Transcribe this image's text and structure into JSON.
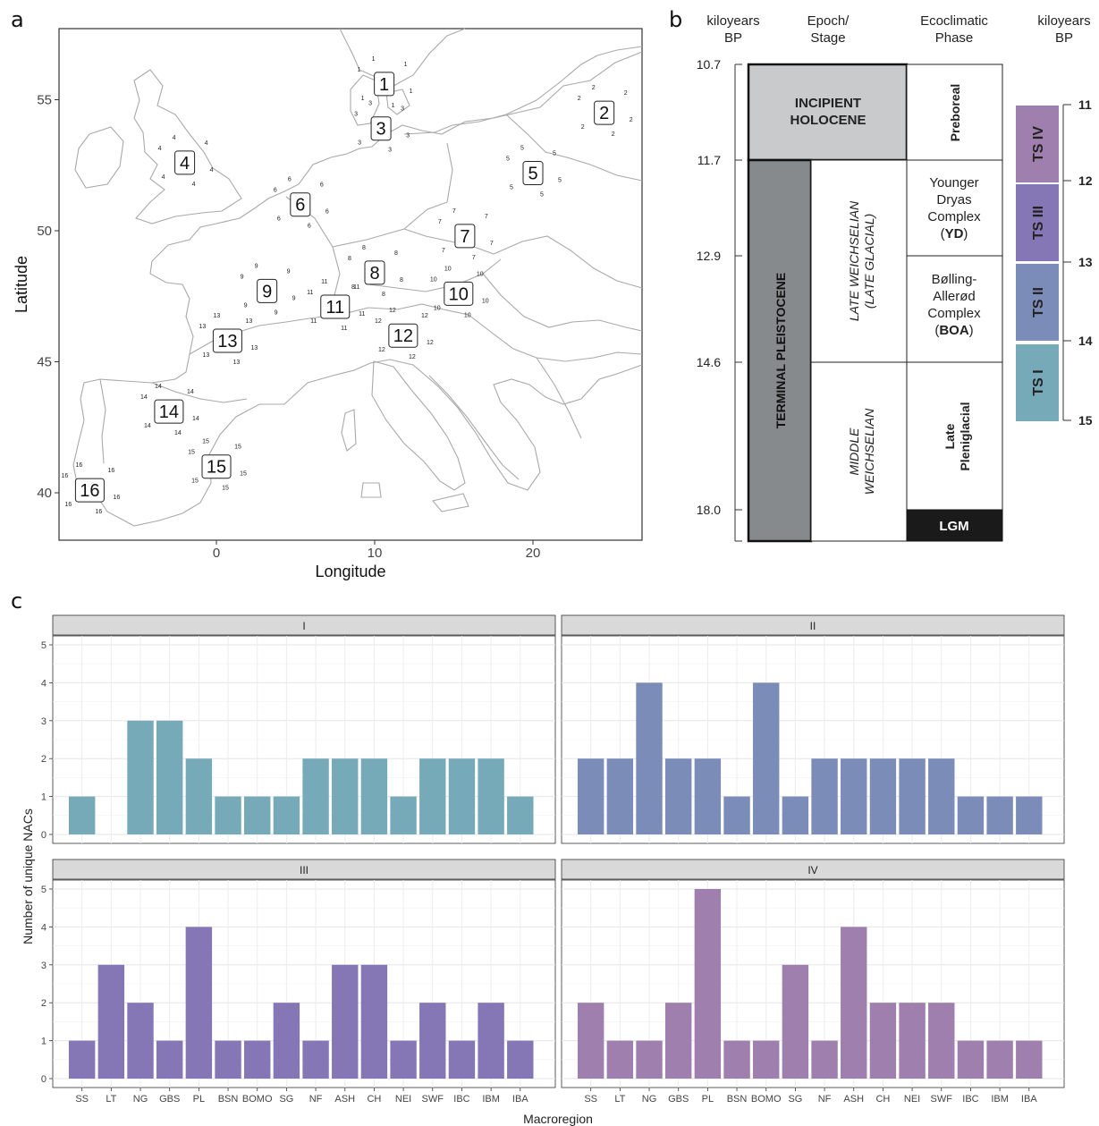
{
  "panel_labels": {
    "a": "a",
    "b": "b",
    "c": "c"
  },
  "map": {
    "xlabel": "Longitude",
    "ylabel": "Latitude",
    "x_ticks": [
      0,
      10,
      20
    ],
    "y_ticks": [
      40,
      45,
      50,
      55
    ],
    "regions": [
      {
        "label": "1",
        "lon": 10.6,
        "lat": 55.6
      },
      {
        "label": "2",
        "lon": 24.5,
        "lat": 54.5
      },
      {
        "label": "3",
        "lon": 10.4,
        "lat": 53.9
      },
      {
        "label": "4",
        "lon": -2.0,
        "lat": 52.6
      },
      {
        "label": "5",
        "lon": 20.0,
        "lat": 52.2
      },
      {
        "label": "6",
        "lon": 5.3,
        "lat": 51.0
      },
      {
        "label": "7",
        "lon": 15.7,
        "lat": 49.8
      },
      {
        "label": "8",
        "lon": 10.0,
        "lat": 48.4
      },
      {
        "label": "9",
        "lon": 3.2,
        "lat": 47.7
      },
      {
        "label": "10",
        "lon": 15.3,
        "lat": 47.6
      },
      {
        "label": "11",
        "lon": 7.5,
        "lat": 47.1
      },
      {
        "label": "12",
        "lon": 11.8,
        "lat": 46.0
      },
      {
        "label": "13",
        "lon": 0.7,
        "lat": 45.8
      },
      {
        "label": "14",
        "lon": -3.0,
        "lat": 43.1
      },
      {
        "label": "15",
        "lon": 0.0,
        "lat": 41.0
      },
      {
        "label": "16",
        "lon": -8.0,
        "lat": 40.1
      }
    ]
  },
  "timeline": {
    "headers": {
      "left": "kiloyears\nBP",
      "epoch": "Epoch/\nStage",
      "eco": "Ecoclimatic\nPhase",
      "right": "kiloyears\nBP"
    },
    "left_ticks": [
      "10.7",
      "11.7",
      "12.9",
      "14.6",
      "18.0"
    ],
    "right_ticks": [
      "11",
      "12",
      "13",
      "14",
      "15"
    ],
    "incipient_holocene": "INCIPIENT\nHOLOCENE",
    "terminal_pleistocene": "TERMINAL PLEISTOCENE",
    "late_weichselian": "LATE WEICHSELIAN\n(LATE GLACIAL)",
    "middle_weichselian": "MIDDLE\nWEICHSELIAN",
    "phases": {
      "preboreal": "Preboreal",
      "yd_lines": [
        "Younger",
        "Dryas",
        "Complex"
      ],
      "yd_abbr": "YD",
      "boa_lines": [
        "Bølling-",
        "Allerød",
        "Complex"
      ],
      "boa_abbr": "BOA",
      "late_pleniglacial": "Late\nPleniglacial",
      "lgm": "LGM"
    },
    "ts_labels": [
      "TS IV",
      "TS III",
      "TS II",
      "TS I"
    ],
    "ts_colors": [
      "#9e7fad",
      "#8577b5",
      "#7b8cb8",
      "#76aab9"
    ]
  },
  "chart_data": {
    "type": "bar",
    "ylabel": "Number of unique NACs",
    "xlabel": "Macroregion",
    "ylim": [
      0,
      5
    ],
    "categories": [
      "SS",
      "LT",
      "NG",
      "GBS",
      "PL",
      "BSN",
      "BOMO",
      "SG",
      "NF",
      "ASH",
      "CH",
      "NEI",
      "SWF",
      "IBC",
      "IBM",
      "IBA"
    ],
    "facets": [
      {
        "name": "I",
        "color": "#76aab9",
        "values": [
          1,
          0,
          3,
          3,
          2,
          1,
          1,
          1,
          2,
          2,
          2,
          1,
          2,
          2,
          2,
          1
        ]
      },
      {
        "name": "II",
        "color": "#7b8cb8",
        "values": [
          2,
          2,
          4,
          2,
          2,
          1,
          4,
          1,
          2,
          2,
          2,
          2,
          2,
          1,
          1,
          1
        ]
      },
      {
        "name": "III",
        "color": "#8577b5",
        "values": [
          1,
          3,
          2,
          1,
          4,
          1,
          1,
          2,
          1,
          3,
          3,
          1,
          2,
          1,
          2,
          1
        ]
      },
      {
        "name": "IV",
        "color": "#9e7fad",
        "values": [
          2,
          1,
          1,
          2,
          5,
          1,
          1,
          3,
          1,
          4,
          2,
          2,
          2,
          1,
          1,
          1
        ]
      }
    ]
  }
}
